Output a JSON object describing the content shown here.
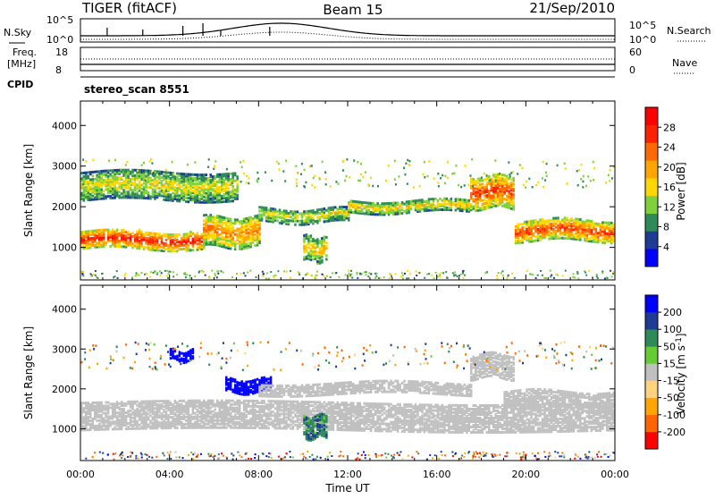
{
  "header": {
    "title": "TIGER (fitACF)",
    "beam": "Beam 15",
    "date": "21/Sep/2010"
  },
  "strips": {
    "nsky_label": "N.Sky",
    "nsearch_label": "N.Search",
    "nsky_ticks": [
      "10^5",
      "10^0"
    ],
    "nsearch_ticks": [
      "10^5",
      "10^0"
    ],
    "freq_label_1": "Freq.",
    "freq_label_2": "[MHz]",
    "freq_ticks": [
      "18",
      "8"
    ],
    "nave_label": "Nave",
    "nave_ticks": [
      "60",
      "0"
    ],
    "cpid_label": "CPID",
    "cpid_value": "stereo_scan 8551"
  },
  "colors": {
    "power_scale": [
      "#0000ff",
      "#1e3c96",
      "#2e8b57",
      "#7fd13b",
      "#ffd700",
      "#ffa500",
      "#ff6a00",
      "#ff2200",
      "#ff0000"
    ],
    "velocity_scale": [
      "#ff0000",
      "#ff6600",
      "#ffa500",
      "#ffd27f",
      "#c0c0c0",
      "#66cc33",
      "#2e8b57",
      "#1e3c96",
      "#0000ff"
    ]
  },
  "chart_data": [
    {
      "type": "heatmap",
      "title": "",
      "xlabel": "",
      "ylabel": "Slant Range [km]",
      "x_ticks": [
        "00:00",
        "04:00",
        "08:00",
        "12:00",
        "16:00",
        "20:00",
        "00:00"
      ],
      "y_ticks": [
        1000,
        2000,
        3000,
        4000
      ],
      "xlim_hours": [
        0,
        24
      ],
      "ylim": [
        200,
        4600
      ],
      "colorbar": {
        "label": "Power [dB]",
        "ticks": [
          4,
          8,
          12,
          16,
          20,
          24,
          28
        ],
        "range": [
          0,
          32
        ]
      },
      "echo_bands": [
        {
          "start_hour": 0,
          "end_hour": 5.5,
          "range_km": [
            1000,
            1450
          ],
          "power_db": 28
        },
        {
          "start_hour": 5.5,
          "end_hour": 8,
          "range_km": [
            1050,
            1800
          ],
          "power_db": 22
        },
        {
          "start_hour": 8,
          "end_hour": 12,
          "range_km": [
            1650,
            2000
          ],
          "power_db": 16
        },
        {
          "start_hour": 12,
          "end_hour": 17.5,
          "range_km": [
            1900,
            2200
          ],
          "power_db": 18
        },
        {
          "start_hour": 17.5,
          "end_hour": 19.5,
          "range_km": [
            2000,
            2800
          ],
          "power_db": 26
        },
        {
          "start_hour": 19.5,
          "end_hour": 24,
          "range_km": [
            1200,
            1700
          ],
          "power_db": 26
        },
        {
          "start_hour": 0,
          "end_hour": 7,
          "range_km": [
            2200,
            2900
          ],
          "power_db": 16
        },
        {
          "start_hour": 10,
          "end_hour": 11,
          "range_km": [
            700,
            1300
          ],
          "power_db": 18
        }
      ]
    },
    {
      "type": "heatmap",
      "title": "",
      "xlabel": "Time UT",
      "ylabel": "Slant Range [km]",
      "x_ticks": [
        "00:00",
        "04:00",
        "08:00",
        "12:00",
        "16:00",
        "20:00",
        "00:00"
      ],
      "y_ticks": [
        1000,
        2000,
        3000,
        4000
      ],
      "xlim_hours": [
        0,
        24
      ],
      "ylim": [
        200,
        4600
      ],
      "colorbar": {
        "label": "Velocity [m s^-1]",
        "ticks": [
          -200,
          -100,
          -50,
          -15,
          15,
          50,
          100,
          200
        ],
        "range": [
          -250,
          250
        ]
      },
      "echo_bands": [
        {
          "start_hour": 0,
          "end_hour": 24,
          "range_km": [
            1000,
            1700
          ],
          "velocity": 0
        },
        {
          "start_hour": 4,
          "end_hour": 5,
          "range_km": [
            2750,
            3000
          ],
          "velocity": 200
        },
        {
          "start_hour": 6.5,
          "end_hour": 8.5,
          "range_km": [
            1950,
            2300
          ],
          "velocity": 220
        },
        {
          "start_hour": 10,
          "end_hour": 11,
          "range_km": [
            800,
            1350
          ],
          "velocity": 60
        },
        {
          "start_hour": 8,
          "end_hour": 17.5,
          "range_km": [
            1900,
            2200
          ],
          "velocity": 0
        },
        {
          "start_hour": 17.5,
          "end_hour": 19.5,
          "range_km": [
            2300,
            2900
          ],
          "velocity": 0
        },
        {
          "start_hour": 19,
          "end_hour": 24,
          "range_km": [
            1600,
            2000
          ],
          "velocity": 0
        }
      ]
    }
  ]
}
